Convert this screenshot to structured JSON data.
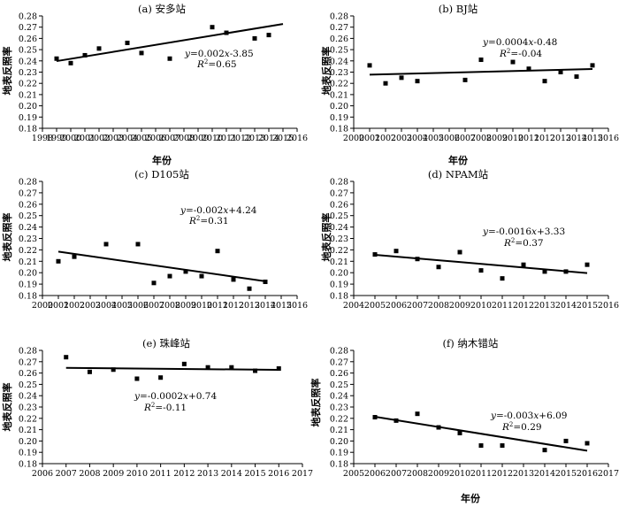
{
  "chart_data": [
    {
      "type": "scatter",
      "title": "(a) 安多站",
      "xlabel": "年份",
      "ylabel": "地表反照率",
      "xlim": [
        1998,
        2016
      ],
      "ylim": [
        0.18,
        0.28
      ],
      "xticks": [
        1998,
        1999,
        2000,
        2001,
        2002,
        2003,
        2004,
        2005,
        2006,
        2007,
        2008,
        2009,
        2010,
        2011,
        2012,
        2013,
        2014,
        2015,
        2016
      ],
      "xtick_labels": [
        "1998",
        "1999",
        "2000",
        "2001",
        "2002",
        "2003",
        "2004",
        "2005",
        "2006",
        "2007",
        "2008",
        "2009",
        "2010",
        "2011",
        "2012",
        "2013",
        "2014",
        "2015",
        "2016"
      ],
      "yticks": [
        0.18,
        0.19,
        0.2,
        0.21,
        0.22,
        0.23,
        0.24,
        0.25,
        0.26,
        0.27,
        0.28
      ],
      "ytick_labels": [
        "0.18",
        "0.19",
        "0.20",
        "0.21",
        "0.22",
        "0.23",
        "0.24",
        "0.25",
        "0.26",
        "0.27",
        "0.28"
      ],
      "points": [
        [
          1999,
          0.242
        ],
        [
          2000,
          0.238
        ],
        [
          2001,
          0.245
        ],
        [
          2002,
          0.251
        ],
        [
          2004,
          0.256
        ],
        [
          2005,
          0.247
        ],
        [
          2007,
          0.242
        ],
        [
          2010,
          0.27
        ],
        [
          2011,
          0.265
        ],
        [
          2013,
          0.26
        ],
        [
          2014,
          0.263
        ]
      ],
      "trend": {
        "x": [
          1999,
          2015
        ],
        "y": [
          0.2398,
          0.2728
        ]
      },
      "equation": {
        "y": "y",
        "rest": "=0.002",
        "x": "x",
        "tail": "-3.85"
      },
      "r2": {
        "r": "R",
        "sup": "2",
        "rest": "=0.65"
      },
      "grid": false,
      "legend": "none"
    },
    {
      "type": "scatter",
      "title": "(b) BJ站",
      "xlabel": "年份",
      "ylabel": "地表反照率",
      "xlim": [
        2000,
        2016
      ],
      "ylim": [
        0.18,
        0.28
      ],
      "xticks": [
        2000,
        2001,
        2002,
        2003,
        2004,
        2005,
        2006,
        2007,
        2008,
        2009,
        2010,
        2011,
        2012,
        2013,
        2014,
        2015,
        2016
      ],
      "xtick_labels": [
        "2000",
        "2001",
        "2002",
        "2003",
        "2004",
        "2005",
        "2006",
        "2007",
        "2008",
        "2009",
        "2010",
        "2011",
        "2012",
        "2013",
        "2014",
        "2015",
        "2016"
      ],
      "yticks": [
        0.18,
        0.19,
        0.2,
        0.21,
        0.22,
        0.23,
        0.24,
        0.25,
        0.26,
        0.27,
        0.28
      ],
      "ytick_labels": [
        "0.18",
        "0.19",
        "0.20",
        "0.21",
        "0.22",
        "0.23",
        "0.24",
        "0.25",
        "0.26",
        "0.27",
        "0.28"
      ],
      "points": [
        [
          2001,
          0.236
        ],
        [
          2002,
          0.22
        ],
        [
          2003,
          0.225
        ],
        [
          2004,
          0.222
        ],
        [
          2007,
          0.223
        ],
        [
          2008,
          0.241
        ],
        [
          2010,
          0.239
        ],
        [
          2011,
          0.233
        ],
        [
          2012,
          0.222
        ],
        [
          2013,
          0.23
        ],
        [
          2014,
          0.226
        ],
        [
          2015,
          0.236
        ]
      ],
      "trend": {
        "x": [
          2001,
          2015
        ],
        "y": [
          0.2277,
          0.2328
        ]
      },
      "equation": {
        "y": "y",
        "rest": "=0.0004",
        "x": "x",
        "tail": "-0.48"
      },
      "r2": {
        "r": "R",
        "sup": "2",
        "rest": "=-0.04"
      },
      "grid": false,
      "legend": "none"
    },
    {
      "type": "scatter",
      "title": "(c) D105站",
      "xlabel": "",
      "ylabel": "地表反照率",
      "xlim": [
        2000,
        2016
      ],
      "ylim": [
        0.18,
        0.28
      ],
      "xticks": [
        2000,
        2001,
        2002,
        2003,
        2004,
        2005,
        2006,
        2007,
        2008,
        2009,
        2010,
        2011,
        2012,
        2013,
        2014,
        2015,
        2016
      ],
      "xtick_labels": [
        "2000",
        "2001",
        "2002",
        "2003",
        "2004",
        "2005",
        "2006",
        "2007",
        "2008",
        "2009",
        "2010",
        "2011",
        "2012",
        "2013",
        "2014",
        "2015",
        "2016"
      ],
      "yticks": [
        0.18,
        0.19,
        0.2,
        0.21,
        0.22,
        0.23,
        0.24,
        0.25,
        0.26,
        0.27,
        0.28
      ],
      "ytick_labels": [
        "0.18",
        "0.19",
        "0.20",
        "0.21",
        "0.22",
        "0.23",
        "0.24",
        "0.25",
        "0.26",
        "0.27",
        "0.28"
      ],
      "points": [
        [
          2001,
          0.21
        ],
        [
          2002,
          0.214
        ],
        [
          2004,
          0.225
        ],
        [
          2006,
          0.225
        ],
        [
          2007,
          0.191
        ],
        [
          2008,
          0.197
        ],
        [
          2009,
          0.201
        ],
        [
          2010,
          0.197
        ],
        [
          2011,
          0.219
        ],
        [
          2012,
          0.194
        ],
        [
          2013,
          0.186
        ],
        [
          2014,
          0.192
        ]
      ],
      "trend": {
        "x": [
          2001,
          2014
        ],
        "y": [
          0.2185,
          0.1925
        ]
      },
      "equation": {
        "y": "y",
        "rest": "=-0.002",
        "x": "x",
        "tail": "+4.24"
      },
      "r2": {
        "r": "R",
        "sup": "2",
        "rest": "=0.31"
      },
      "grid": false,
      "legend": "none"
    },
    {
      "type": "scatter",
      "title": "(d) NPAM站",
      "xlabel": "",
      "ylabel": "地表反照率",
      "xlim": [
        2004,
        2016
      ],
      "ylim": [
        0.18,
        0.28
      ],
      "xticks": [
        2004,
        2005,
        2006,
        2007,
        2008,
        2009,
        2010,
        2011,
        2012,
        2013,
        2014,
        2015,
        2016
      ],
      "xtick_labels": [
        "2004",
        "2005",
        "2006",
        "2007",
        "2008",
        "2009",
        "2010",
        "2011",
        "2012",
        "2013",
        "2014",
        "2015",
        "2016"
      ],
      "yticks": [
        0.18,
        0.19,
        0.2,
        0.21,
        0.22,
        0.23,
        0.24,
        0.25,
        0.26,
        0.27,
        0.28
      ],
      "ytick_labels": [
        "0.18",
        "0.19",
        "0.20",
        "0.21",
        "0.22",
        "0.23",
        "0.24",
        "0.25",
        "0.26",
        "0.27",
        "0.28"
      ],
      "points": [
        [
          2005,
          0.216
        ],
        [
          2006,
          0.219
        ],
        [
          2007,
          0.212
        ],
        [
          2008,
          0.205
        ],
        [
          2009,
          0.218
        ],
        [
          2010,
          0.202
        ],
        [
          2011,
          0.195
        ],
        [
          2012,
          0.207
        ],
        [
          2013,
          0.201
        ],
        [
          2014,
          0.201
        ],
        [
          2015,
          0.207
        ]
      ],
      "trend": {
        "x": [
          2005,
          2015
        ],
        "y": [
          0.2157,
          0.1997
        ]
      },
      "equation": {
        "y": "y",
        "rest": "=-0.0016",
        "x": "x",
        "tail": "+3.33"
      },
      "r2": {
        "r": "R",
        "sup": "2",
        "rest": "=0.37"
      },
      "grid": false,
      "legend": "none"
    },
    {
      "type": "scatter",
      "title": "(e) 珠峰站",
      "xlabel": "",
      "ylabel": "地表反照率",
      "xlim": [
        2006,
        2017
      ],
      "ylim": [
        0.18,
        0.28
      ],
      "xticks": [
        2006,
        2007,
        2008,
        2009,
        2010,
        2011,
        2012,
        2013,
        2014,
        2015,
        2016,
        2017
      ],
      "xtick_labels": [
        "2006",
        "2007",
        "2008",
        "2009",
        "2010",
        "2011",
        "2012",
        "2013",
        "2014",
        "2015",
        "2016",
        "2017"
      ],
      "yticks": [
        0.18,
        0.19,
        0.2,
        0.21,
        0.22,
        0.23,
        0.24,
        0.25,
        0.26,
        0.27,
        0.28
      ],
      "ytick_labels": [
        "0.18",
        "0.19",
        "0.20",
        "0.21",
        "0.22",
        "0.23",
        "0.24",
        "0.25",
        "0.26",
        "0.27",
        "0.28"
      ],
      "points": [
        [
          2007,
          0.274
        ],
        [
          2008,
          0.261
        ],
        [
          2009,
          0.263
        ],
        [
          2010,
          0.255
        ],
        [
          2011,
          0.256
        ],
        [
          2012,
          0.268
        ],
        [
          2013,
          0.265
        ],
        [
          2014,
          0.265
        ],
        [
          2015,
          0.262
        ],
        [
          2016,
          0.264
        ]
      ],
      "trend": {
        "x": [
          2007,
          2016
        ],
        "y": [
          0.2646,
          0.2628
        ]
      },
      "equation": {
        "y": "y",
        "rest": "=-0.0002",
        "x": "x",
        "tail": "+0.74"
      },
      "r2": {
        "r": "R",
        "sup": "2",
        "rest": "=-0.11"
      },
      "grid": false,
      "legend": "none"
    },
    {
      "type": "scatter",
      "title": "(f) 纳木错站",
      "xlabel": "年份",
      "ylabel": "地表反照率",
      "xlim": [
        2005,
        2017
      ],
      "ylim": [
        0.18,
        0.28
      ],
      "xticks": [
        2005,
        2006,
        2007,
        2008,
        2009,
        2010,
        2011,
        2012,
        2013,
        2014,
        2015,
        2016,
        2017
      ],
      "xtick_labels": [
        "2005",
        "2006",
        "2007",
        "2008",
        "2009",
        "2010",
        "2011",
        "2012",
        "2013",
        "2014",
        "2015",
        "2016",
        "2017"
      ],
      "yticks": [
        0.18,
        0.19,
        0.2,
        0.21,
        0.22,
        0.23,
        0.24,
        0.25,
        0.26,
        0.27,
        0.28
      ],
      "ytick_labels": [
        "0.18",
        "0.19",
        "0.20",
        "0.21",
        "0.22",
        "0.23",
        "0.24",
        "0.25",
        "0.26",
        "0.27",
        "0.28"
      ],
      "points": [
        [
          2006,
          0.221
        ],
        [
          2007,
          0.218
        ],
        [
          2008,
          0.224
        ],
        [
          2009,
          0.212
        ],
        [
          2010,
          0.207
        ],
        [
          2011,
          0.196
        ],
        [
          2012,
          0.196
        ],
        [
          2014,
          0.192
        ],
        [
          2015,
          0.2
        ],
        [
          2016,
          0.198
        ]
      ],
      "trend": {
        "x": [
          2006,
          2016
        ],
        "y": [
          0.2214,
          0.1914
        ]
      },
      "equation": {
        "y": "y",
        "rest": "=-0.003",
        "x": "x",
        "tail": "+6.09"
      },
      "r2": {
        "r": "R",
        "sup": "2",
        "rest": "=0.29"
      },
      "grid": false,
      "legend": "none"
    }
  ]
}
